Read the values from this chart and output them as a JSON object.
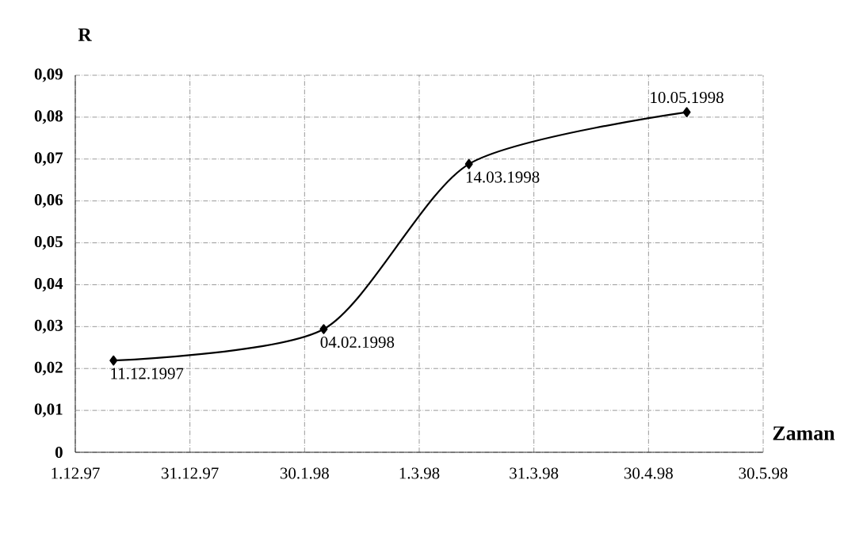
{
  "chart_data": {
    "type": "line",
    "xlabel": "Zaman",
    "ylabel": "R",
    "x": [
      "1997-12-11",
      "1998-02-04",
      "1998-03-14",
      "1998-05-10"
    ],
    "values": [
      0.0219,
      0.0294,
      0.0688,
      0.0812
    ],
    "color": "#000000",
    "marker": "diamond",
    "line_style": "solid",
    "grid": true,
    "xlim": [
      "1997-12-01",
      "1998-05-30"
    ],
    "xticks": [
      {
        "value": "1997-12-01",
        "label": "1.12.97"
      },
      {
        "value": "1997-12-31",
        "label": "31.12.97"
      },
      {
        "value": "1998-01-30",
        "label": "30.1.98"
      },
      {
        "value": "1998-03-01",
        "label": "1.3.98"
      },
      {
        "value": "1998-03-31",
        "label": "31.3.98"
      },
      {
        "value": "1998-04-30",
        "label": "30.4.98"
      },
      {
        "value": "1998-05-30",
        "label": "30.5.98"
      }
    ],
    "ylim": [
      0,
      0.09
    ],
    "yticks": [
      {
        "value": 0,
        "label": "0"
      },
      {
        "value": 0.01,
        "label": "0,01"
      },
      {
        "value": 0.02,
        "label": "0,02"
      },
      {
        "value": 0.03,
        "label": "0,03"
      },
      {
        "value": 0.04,
        "label": "0,04"
      },
      {
        "value": 0.05,
        "label": "0,05"
      },
      {
        "value": 0.06,
        "label": "0,06"
      },
      {
        "value": 0.07,
        "label": "0,07"
      },
      {
        "value": 0.08,
        "label": "0,08"
      },
      {
        "value": 0.09,
        "label": "0,09"
      }
    ],
    "annotations": [
      {
        "text": "11.12.1997",
        "x": "1997-12-11",
        "y": 0.0219
      },
      {
        "text": "04.02.1998",
        "x": "1998-02-04",
        "y": 0.0294
      },
      {
        "text": "14.03.1998",
        "x": "1998-03-14",
        "y": 0.0688
      },
      {
        "text": "10.05.1998",
        "x": "1998-05-10",
        "y": 0.0812
      }
    ]
  }
}
